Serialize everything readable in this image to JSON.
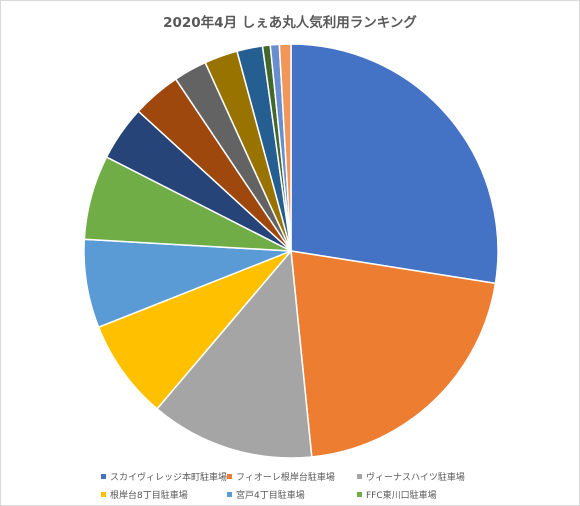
{
  "chart_data": {
    "type": "pie",
    "title": "2020年4月 しぇあ丸人気利用ランキング",
    "categories": [
      "スカイヴィレッジ本町駐車場",
      "フィオーレ根岸台駐車場",
      "ヴィーナスハイツ駐車場",
      "根岸台8丁目駐車場",
      "宮戸4丁目駐車場",
      "FFC東川口駐車場",
      "",
      "",
      "",
      "",
      "",
      "",
      "",
      ""
    ],
    "values": [
      27.5,
      20.9,
      12.8,
      7.8,
      6.9,
      6.6,
      4.3,
      3.8,
      2.6,
      2.6,
      2.0,
      0.6,
      0.7,
      0.9
    ],
    "colors": [
      "#4472c4",
      "#ed7d31",
      "#a5a5a5",
      "#ffc000",
      "#5b9bd5",
      "#70ad47",
      "#264478",
      "#9e480e",
      "#636363",
      "#997300",
      "#255e91",
      "#43682b",
      "#698ed0",
      "#f1975a"
    ],
    "legend_position": "bottom"
  }
}
